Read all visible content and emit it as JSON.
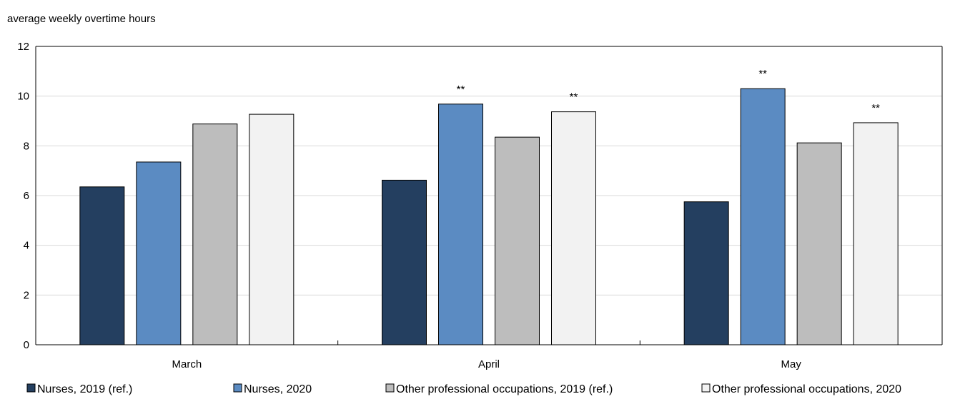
{
  "chart_data": {
    "type": "bar",
    "ylabel": "average weekly overtime hours",
    "ylim": [
      0,
      12
    ],
    "yticks": [
      0,
      2,
      4,
      6,
      8,
      10,
      12
    ],
    "grid": true,
    "legend_placement": "bottom",
    "categories": [
      "March",
      "April",
      "May"
    ],
    "series": [
      {
        "name": "Nurses, 2019 (ref.)",
        "color": "#243f60",
        "values": [
          6.35,
          6.62,
          5.75
        ],
        "annotations": [
          "",
          "",
          ""
        ]
      },
      {
        "name": "Nurses, 2020",
        "color": "#5b8bc2",
        "values": [
          7.35,
          9.68,
          10.3
        ],
        "annotations": [
          "",
          "**",
          "**"
        ]
      },
      {
        "name": "Other professional occupations, 2019 (ref.)",
        "color": "#bdbdbd",
        "values": [
          8.88,
          8.35,
          8.12
        ],
        "annotations": [
          "",
          "",
          ""
        ]
      },
      {
        "name": "Other professional occupations, 2020",
        "color": "#f2f2f2",
        "values": [
          9.27,
          9.37,
          8.93
        ],
        "annotations": [
          "",
          "**",
          "**"
        ]
      }
    ]
  }
}
